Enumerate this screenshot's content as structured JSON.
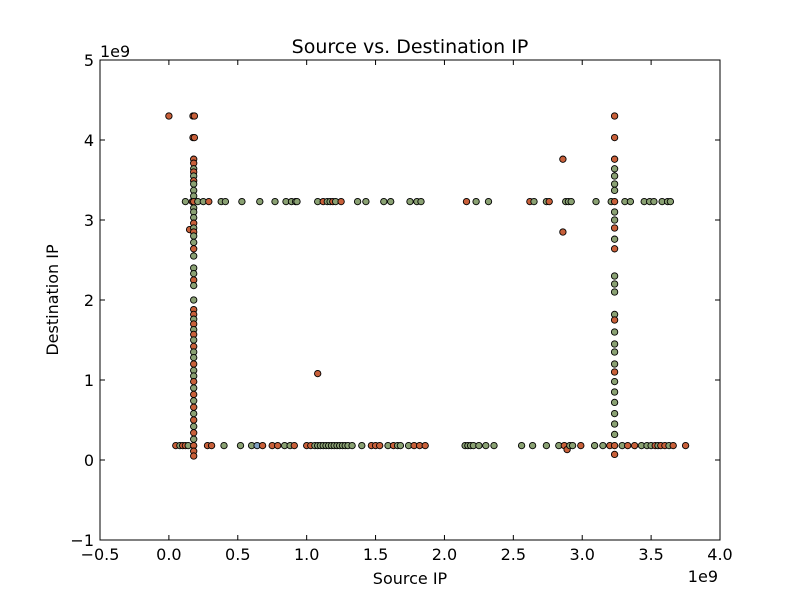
{
  "chart_data": {
    "type": "scatter",
    "title": "Source vs. Destination IP",
    "xlabel": "Source IP",
    "ylabel": "Destination IP",
    "x_offset_label": "1e9",
    "y_offset_label": "1e9",
    "xlim": [
      -0.5,
      4.0
    ],
    "ylim": [
      -1,
      5
    ],
    "x_ticks": [
      -0.5,
      0.0,
      0.5,
      1.0,
      1.5,
      2.0,
      2.5,
      3.0,
      3.5,
      4.0
    ],
    "x_tick_labels": [
      "−0.5",
      "0.0",
      "0.5",
      "1.0",
      "1.5",
      "2.0",
      "2.5",
      "3.0",
      "3.5",
      "4.0"
    ],
    "y_ticks": [
      -1,
      0,
      1,
      2,
      3,
      4,
      5
    ],
    "y_tick_labels": [
      "−1",
      "0",
      "1",
      "2",
      "3",
      "4",
      "5"
    ],
    "grid": false,
    "colors": {
      "orange": "#c8603a",
      "green": "#8aa173",
      "blue": "#7f9fc0",
      "edge": "#000000"
    },
    "points": [
      {
        "x": 0.0,
        "y": 4.3,
        "c": "orange"
      },
      {
        "x": 0.05,
        "y": 0.18,
        "c": "orange"
      },
      {
        "x": 0.08,
        "y": 0.18,
        "c": "green"
      },
      {
        "x": 0.1,
        "y": 0.18,
        "c": "orange"
      },
      {
        "x": 0.12,
        "y": 0.18,
        "c": "orange"
      },
      {
        "x": 0.12,
        "y": 3.23,
        "c": "green"
      },
      {
        "x": 0.14,
        "y": 0.18,
        "c": "green"
      },
      {
        "x": 0.15,
        "y": 2.88,
        "c": "orange"
      },
      {
        "x": 0.17,
        "y": 3.23,
        "c": "orange"
      },
      {
        "x": 0.175,
        "y": 4.3,
        "c": "orange"
      },
      {
        "x": 0.185,
        "y": 4.3,
        "c": "orange"
      },
      {
        "x": 0.175,
        "y": 4.03,
        "c": "orange"
      },
      {
        "x": 0.185,
        "y": 4.03,
        "c": "orange"
      },
      {
        "x": 0.18,
        "y": 3.76,
        "c": "orange"
      },
      {
        "x": 0.18,
        "y": 3.71,
        "c": "orange"
      },
      {
        "x": 0.18,
        "y": 3.64,
        "c": "green"
      },
      {
        "x": 0.18,
        "y": 3.6,
        "c": "orange"
      },
      {
        "x": 0.18,
        "y": 3.55,
        "c": "green"
      },
      {
        "x": 0.18,
        "y": 3.49,
        "c": "orange"
      },
      {
        "x": 0.18,
        "y": 3.45,
        "c": "green"
      },
      {
        "x": 0.18,
        "y": 3.37,
        "c": "green"
      },
      {
        "x": 0.18,
        "y": 3.3,
        "c": "green"
      },
      {
        "x": 0.18,
        "y": 3.23,
        "c": "orange"
      },
      {
        "x": 0.18,
        "y": 3.15,
        "c": "green"
      },
      {
        "x": 0.18,
        "y": 3.1,
        "c": "green"
      },
      {
        "x": 0.18,
        "y": 3.03,
        "c": "green"
      },
      {
        "x": 0.18,
        "y": 2.96,
        "c": "orange"
      },
      {
        "x": 0.18,
        "y": 2.9,
        "c": "green"
      },
      {
        "x": 0.18,
        "y": 2.85,
        "c": "orange"
      },
      {
        "x": 0.18,
        "y": 2.8,
        "c": "green"
      },
      {
        "x": 0.18,
        "y": 2.72,
        "c": "green"
      },
      {
        "x": 0.18,
        "y": 2.64,
        "c": "orange"
      },
      {
        "x": 0.18,
        "y": 2.55,
        "c": "green"
      },
      {
        "x": 0.18,
        "y": 2.4,
        "c": "green"
      },
      {
        "x": 0.18,
        "y": 2.33,
        "c": "green"
      },
      {
        "x": 0.18,
        "y": 2.25,
        "c": "orange"
      },
      {
        "x": 0.18,
        "y": 2.18,
        "c": "green"
      },
      {
        "x": 0.18,
        "y": 2.0,
        "c": "green"
      },
      {
        "x": 0.18,
        "y": 1.88,
        "c": "orange"
      },
      {
        "x": 0.18,
        "y": 1.82,
        "c": "orange"
      },
      {
        "x": 0.18,
        "y": 1.76,
        "c": "green"
      },
      {
        "x": 0.18,
        "y": 1.7,
        "c": "orange"
      },
      {
        "x": 0.18,
        "y": 1.63,
        "c": "green"
      },
      {
        "x": 0.18,
        "y": 1.57,
        "c": "orange"
      },
      {
        "x": 0.18,
        "y": 1.5,
        "c": "green"
      },
      {
        "x": 0.18,
        "y": 1.42,
        "c": "orange"
      },
      {
        "x": 0.18,
        "y": 1.35,
        "c": "green"
      },
      {
        "x": 0.18,
        "y": 1.28,
        "c": "green"
      },
      {
        "x": 0.18,
        "y": 1.2,
        "c": "orange"
      },
      {
        "x": 0.18,
        "y": 1.12,
        "c": "green"
      },
      {
        "x": 0.18,
        "y": 1.05,
        "c": "green"
      },
      {
        "x": 0.18,
        "y": 0.98,
        "c": "orange"
      },
      {
        "x": 0.18,
        "y": 0.9,
        "c": "green"
      },
      {
        "x": 0.18,
        "y": 0.82,
        "c": "orange"
      },
      {
        "x": 0.18,
        "y": 0.74,
        "c": "green"
      },
      {
        "x": 0.18,
        "y": 0.66,
        "c": "orange"
      },
      {
        "x": 0.18,
        "y": 0.58,
        "c": "green"
      },
      {
        "x": 0.18,
        "y": 0.5,
        "c": "orange"
      },
      {
        "x": 0.18,
        "y": 0.42,
        "c": "green"
      },
      {
        "x": 0.18,
        "y": 0.34,
        "c": "orange"
      },
      {
        "x": 0.18,
        "y": 0.26,
        "c": "green"
      },
      {
        "x": 0.18,
        "y": 0.18,
        "c": "orange"
      },
      {
        "x": 0.18,
        "y": 0.11,
        "c": "orange"
      },
      {
        "x": 0.18,
        "y": 0.05,
        "c": "orange"
      },
      {
        "x": 0.21,
        "y": 3.23,
        "c": "green"
      },
      {
        "x": 0.25,
        "y": 3.23,
        "c": "green"
      },
      {
        "x": 0.28,
        "y": 0.18,
        "c": "orange"
      },
      {
        "x": 0.29,
        "y": 3.23,
        "c": "orange"
      },
      {
        "x": 0.31,
        "y": 0.18,
        "c": "orange"
      },
      {
        "x": 0.38,
        "y": 3.23,
        "c": "green"
      },
      {
        "x": 0.4,
        "y": 0.18,
        "c": "green"
      },
      {
        "x": 0.41,
        "y": 3.23,
        "c": "green"
      },
      {
        "x": 0.52,
        "y": 0.18,
        "c": "green"
      },
      {
        "x": 0.53,
        "y": 3.23,
        "c": "green"
      },
      {
        "x": 0.6,
        "y": 0.18,
        "c": "green"
      },
      {
        "x": 0.64,
        "y": 0.18,
        "c": "blue"
      },
      {
        "x": 0.66,
        "y": 3.23,
        "c": "green"
      },
      {
        "x": 0.68,
        "y": 0.18,
        "c": "orange"
      },
      {
        "x": 0.75,
        "y": 0.18,
        "c": "orange"
      },
      {
        "x": 0.77,
        "y": 3.23,
        "c": "green"
      },
      {
        "x": 0.79,
        "y": 0.18,
        "c": "orange"
      },
      {
        "x": 0.84,
        "y": 0.18,
        "c": "green"
      },
      {
        "x": 0.85,
        "y": 3.23,
        "c": "green"
      },
      {
        "x": 0.88,
        "y": 0.18,
        "c": "green"
      },
      {
        "x": 0.89,
        "y": 3.23,
        "c": "green"
      },
      {
        "x": 0.91,
        "y": 0.18,
        "c": "orange"
      },
      {
        "x": 0.92,
        "y": 3.23,
        "c": "green"
      },
      {
        "x": 0.93,
        "y": 3.23,
        "c": "green"
      },
      {
        "x": 1.0,
        "y": 0.18,
        "c": "orange"
      },
      {
        "x": 1.03,
        "y": 0.18,
        "c": "orange"
      },
      {
        "x": 1.08,
        "y": 1.08,
        "c": "orange"
      },
      {
        "x": 1.06,
        "y": 0.18,
        "c": "green"
      },
      {
        "x": 1.08,
        "y": 0.18,
        "c": "green"
      },
      {
        "x": 1.08,
        "y": 3.23,
        "c": "green"
      },
      {
        "x": 1.1,
        "y": 0.18,
        "c": "green"
      },
      {
        "x": 1.12,
        "y": 0.18,
        "c": "green"
      },
      {
        "x": 1.12,
        "y": 3.23,
        "c": "orange"
      },
      {
        "x": 1.14,
        "y": 0.18,
        "c": "green"
      },
      {
        "x": 1.15,
        "y": 3.23,
        "c": "green"
      },
      {
        "x": 1.16,
        "y": 0.18,
        "c": "green"
      },
      {
        "x": 1.17,
        "y": 3.23,
        "c": "green"
      },
      {
        "x": 1.18,
        "y": 0.18,
        "c": "green"
      },
      {
        "x": 1.19,
        "y": 3.23,
        "c": "orange"
      },
      {
        "x": 1.2,
        "y": 0.18,
        "c": "green"
      },
      {
        "x": 1.21,
        "y": 3.23,
        "c": "green"
      },
      {
        "x": 1.22,
        "y": 0.18,
        "c": "green"
      },
      {
        "x": 1.24,
        "y": 0.18,
        "c": "green"
      },
      {
        "x": 1.25,
        "y": 3.23,
        "c": "orange"
      },
      {
        "x": 1.26,
        "y": 0.18,
        "c": "green"
      },
      {
        "x": 1.28,
        "y": 0.18,
        "c": "green"
      },
      {
        "x": 1.3,
        "y": 0.18,
        "c": "green"
      },
      {
        "x": 1.33,
        "y": 0.18,
        "c": "green"
      },
      {
        "x": 1.37,
        "y": 3.23,
        "c": "green"
      },
      {
        "x": 1.4,
        "y": 0.18,
        "c": "green"
      },
      {
        "x": 1.43,
        "y": 3.23,
        "c": "green"
      },
      {
        "x": 1.47,
        "y": 0.18,
        "c": "orange"
      },
      {
        "x": 1.5,
        "y": 0.18,
        "c": "orange"
      },
      {
        "x": 1.53,
        "y": 0.18,
        "c": "orange"
      },
      {
        "x": 1.56,
        "y": 3.23,
        "c": "green"
      },
      {
        "x": 1.59,
        "y": 0.18,
        "c": "green"
      },
      {
        "x": 1.61,
        "y": 3.23,
        "c": "green"
      },
      {
        "x": 1.63,
        "y": 0.18,
        "c": "orange"
      },
      {
        "x": 1.66,
        "y": 0.18,
        "c": "green"
      },
      {
        "x": 1.68,
        "y": 0.18,
        "c": "green"
      },
      {
        "x": 1.74,
        "y": 0.18,
        "c": "green"
      },
      {
        "x": 1.75,
        "y": 3.23,
        "c": "green"
      },
      {
        "x": 1.78,
        "y": 0.18,
        "c": "orange"
      },
      {
        "x": 1.8,
        "y": 3.23,
        "c": "green"
      },
      {
        "x": 1.82,
        "y": 0.18,
        "c": "orange"
      },
      {
        "x": 1.83,
        "y": 3.23,
        "c": "green"
      },
      {
        "x": 1.86,
        "y": 0.18,
        "c": "orange"
      },
      {
        "x": 2.15,
        "y": 0.18,
        "c": "green"
      },
      {
        "x": 2.16,
        "y": 3.23,
        "c": "orange"
      },
      {
        "x": 2.17,
        "y": 0.18,
        "c": "green"
      },
      {
        "x": 2.19,
        "y": 0.18,
        "c": "green"
      },
      {
        "x": 2.21,
        "y": 0.18,
        "c": "green"
      },
      {
        "x": 2.23,
        "y": 3.23,
        "c": "green"
      },
      {
        "x": 2.25,
        "y": 0.18,
        "c": "green"
      },
      {
        "x": 2.3,
        "y": 0.18,
        "c": "green"
      },
      {
        "x": 2.32,
        "y": 3.23,
        "c": "green"
      },
      {
        "x": 2.36,
        "y": 0.18,
        "c": "green"
      },
      {
        "x": 2.56,
        "y": 0.18,
        "c": "green"
      },
      {
        "x": 2.62,
        "y": 3.23,
        "c": "orange"
      },
      {
        "x": 2.64,
        "y": 0.18,
        "c": "green"
      },
      {
        "x": 2.65,
        "y": 3.23,
        "c": "green"
      },
      {
        "x": 2.74,
        "y": 0.18,
        "c": "green"
      },
      {
        "x": 2.74,
        "y": 3.23,
        "c": "green"
      },
      {
        "x": 2.76,
        "y": 3.23,
        "c": "orange"
      },
      {
        "x": 2.83,
        "y": 0.18,
        "c": "green"
      },
      {
        "x": 2.86,
        "y": 3.76,
        "c": "orange"
      },
      {
        "x": 2.86,
        "y": 2.85,
        "c": "orange"
      },
      {
        "x": 2.87,
        "y": 0.18,
        "c": "orange"
      },
      {
        "x": 2.88,
        "y": 3.23,
        "c": "green"
      },
      {
        "x": 2.89,
        "y": 0.13,
        "c": "orange"
      },
      {
        "x": 2.9,
        "y": 3.23,
        "c": "green"
      },
      {
        "x": 2.91,
        "y": 0.18,
        "c": "green"
      },
      {
        "x": 2.92,
        "y": 3.23,
        "c": "green"
      },
      {
        "x": 2.93,
        "y": 0.18,
        "c": "green"
      },
      {
        "x": 2.99,
        "y": 0.18,
        "c": "orange"
      },
      {
        "x": 3.09,
        "y": 0.18,
        "c": "green"
      },
      {
        "x": 3.1,
        "y": 3.23,
        "c": "green"
      },
      {
        "x": 3.15,
        "y": 0.18,
        "c": "green"
      },
      {
        "x": 3.2,
        "y": 0.18,
        "c": "orange"
      },
      {
        "x": 3.21,
        "y": 3.23,
        "c": "green"
      },
      {
        "x": 3.235,
        "y": 4.3,
        "c": "orange"
      },
      {
        "x": 3.235,
        "y": 4.03,
        "c": "orange"
      },
      {
        "x": 3.235,
        "y": 3.76,
        "c": "orange"
      },
      {
        "x": 3.235,
        "y": 3.64,
        "c": "green"
      },
      {
        "x": 3.235,
        "y": 3.55,
        "c": "green"
      },
      {
        "x": 3.235,
        "y": 3.45,
        "c": "green"
      },
      {
        "x": 3.235,
        "y": 3.37,
        "c": "green"
      },
      {
        "x": 3.235,
        "y": 3.23,
        "c": "orange"
      },
      {
        "x": 3.235,
        "y": 3.1,
        "c": "green"
      },
      {
        "x": 3.235,
        "y": 3.0,
        "c": "green"
      },
      {
        "x": 3.235,
        "y": 2.9,
        "c": "orange"
      },
      {
        "x": 3.235,
        "y": 2.76,
        "c": "green"
      },
      {
        "x": 3.235,
        "y": 2.64,
        "c": "orange"
      },
      {
        "x": 3.235,
        "y": 2.3,
        "c": "green"
      },
      {
        "x": 3.235,
        "y": 2.2,
        "c": "green"
      },
      {
        "x": 3.235,
        "y": 2.1,
        "c": "green"
      },
      {
        "x": 3.235,
        "y": 1.82,
        "c": "green"
      },
      {
        "x": 3.235,
        "y": 1.75,
        "c": "orange"
      },
      {
        "x": 3.235,
        "y": 1.6,
        "c": "green"
      },
      {
        "x": 3.235,
        "y": 1.45,
        "c": "green"
      },
      {
        "x": 3.235,
        "y": 1.35,
        "c": "green"
      },
      {
        "x": 3.235,
        "y": 1.2,
        "c": "green"
      },
      {
        "x": 3.235,
        "y": 1.1,
        "c": "orange"
      },
      {
        "x": 3.235,
        "y": 0.98,
        "c": "green"
      },
      {
        "x": 3.235,
        "y": 0.85,
        "c": "green"
      },
      {
        "x": 3.235,
        "y": 0.72,
        "c": "green"
      },
      {
        "x": 3.235,
        "y": 0.58,
        "c": "green"
      },
      {
        "x": 3.235,
        "y": 0.45,
        "c": "green"
      },
      {
        "x": 3.235,
        "y": 0.32,
        "c": "green"
      },
      {
        "x": 3.235,
        "y": 0.18,
        "c": "orange"
      },
      {
        "x": 3.235,
        "y": 0.07,
        "c": "orange"
      },
      {
        "x": 3.29,
        "y": 0.18,
        "c": "green"
      },
      {
        "x": 3.31,
        "y": 3.23,
        "c": "green"
      },
      {
        "x": 3.33,
        "y": 0.18,
        "c": "orange"
      },
      {
        "x": 3.35,
        "y": 3.23,
        "c": "green"
      },
      {
        "x": 3.38,
        "y": 0.18,
        "c": "orange"
      },
      {
        "x": 3.43,
        "y": 0.18,
        "c": "green"
      },
      {
        "x": 3.45,
        "y": 3.23,
        "c": "green"
      },
      {
        "x": 3.47,
        "y": 0.18,
        "c": "green"
      },
      {
        "x": 3.49,
        "y": 3.23,
        "c": "green"
      },
      {
        "x": 3.5,
        "y": 0.18,
        "c": "green"
      },
      {
        "x": 3.52,
        "y": 3.23,
        "c": "green"
      },
      {
        "x": 3.53,
        "y": 0.18,
        "c": "orange"
      },
      {
        "x": 3.55,
        "y": 0.18,
        "c": "green"
      },
      {
        "x": 3.57,
        "y": 0.18,
        "c": "orange"
      },
      {
        "x": 3.58,
        "y": 3.23,
        "c": "green"
      },
      {
        "x": 3.6,
        "y": 0.18,
        "c": "orange"
      },
      {
        "x": 3.62,
        "y": 3.23,
        "c": "green"
      },
      {
        "x": 3.63,
        "y": 0.18,
        "c": "green"
      },
      {
        "x": 3.64,
        "y": 3.23,
        "c": "green"
      },
      {
        "x": 3.66,
        "y": 0.18,
        "c": "orange"
      },
      {
        "x": 3.75,
        "y": 0.18,
        "c": "orange"
      }
    ]
  }
}
